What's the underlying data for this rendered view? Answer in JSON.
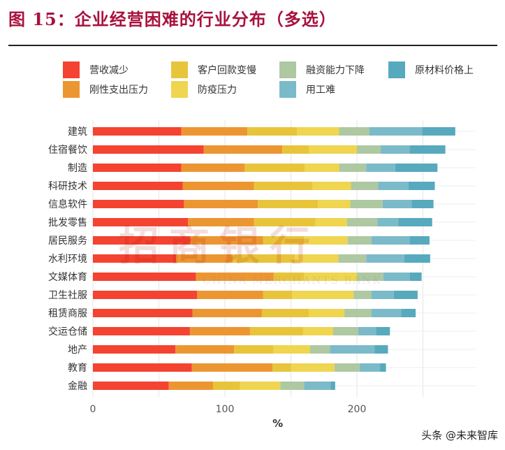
{
  "title": "图 15：企业经营困难的行业分布（多选）",
  "watermark": {
    "text": "招商银行",
    "subtext": "CHINA MERCHANTS BANK"
  },
  "footer": "头条 @未来智库",
  "chart_data": {
    "type": "bar",
    "orientation": "horizontal",
    "stacked": true,
    "title": "",
    "xlabel": "%",
    "ylabel": "",
    "xlim": [
      0,
      290
    ],
    "xticks": [
      0,
      100,
      200
    ],
    "grid": true,
    "legend_position": "top",
    "categories": [
      "建筑",
      "住宿餐饮",
      "制造",
      "科研技术",
      "信息软件",
      "批发零售",
      "居民服务",
      "水利环境",
      "文媒体育",
      "卫生社服",
      "租赁商服",
      "交运仓储",
      "地产",
      "教育",
      "金融"
    ],
    "series": [
      {
        "name": "营收减少",
        "color": "#f44331",
        "values": [
          67,
          84,
          67,
          68,
          69,
          72,
          74,
          63,
          78,
          79,
          75.5,
          73.5,
          62.5,
          75,
          57.5
        ]
      },
      {
        "name": "刚性支出压力",
        "color": "#ec9632",
        "values": [
          50,
          59.5,
          48,
          54,
          56,
          50,
          55,
          43,
          59,
          50,
          52.5,
          45.5,
          44.5,
          61,
          33.5
        ]
      },
      {
        "name": "客户回款变慢",
        "color": "#e8c43a",
        "values": [
          37.5,
          20,
          45.5,
          44.5,
          45.5,
          46.5,
          31,
          47,
          23,
          22,
          35.5,
          40,
          29.5,
          14,
          20.5
        ]
      },
      {
        "name": "防疫压力",
        "color": "#efd550",
        "values": [
          32,
          36.5,
          26,
          29,
          24.5,
          24,
          33,
          33,
          40,
          46.5,
          27,
          23,
          28,
          33,
          30.5
        ]
      },
      {
        "name": "融资能力下降",
        "color": "#aec8a2",
        "values": [
          23,
          18,
          20.5,
          20.5,
          24.5,
          23,
          18,
          21,
          20,
          13.5,
          20.5,
          19,
          15,
          19,
          18
        ]
      },
      {
        "name": "用工难",
        "color": "#7bbac9",
        "values": [
          40,
          22,
          22,
          23,
          22,
          16,
          29,
          29,
          20,
          17,
          22.5,
          13.5,
          34,
          15.5,
          20
        ]
      },
      {
        "name": "原材料价格上",
        "color": "#57a9bd",
        "values": [
          25,
          27,
          32,
          20,
          16.5,
          25.5,
          15,
          19.5,
          9,
          18,
          11,
          10.5,
          10,
          4.5,
          3.5
        ]
      }
    ]
  }
}
